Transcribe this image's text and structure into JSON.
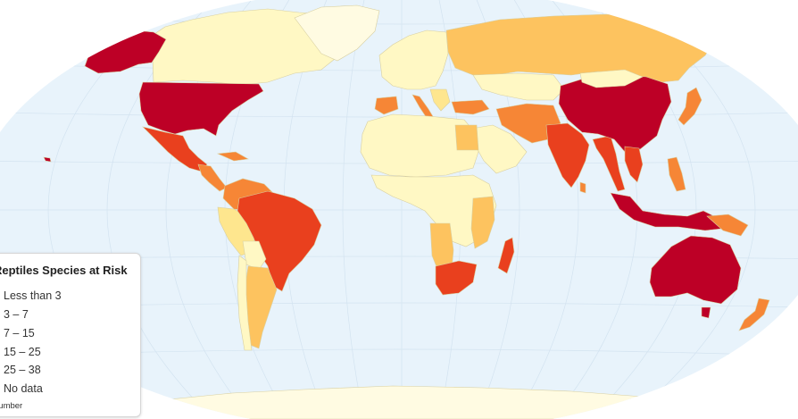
{
  "map": {
    "ocean_color": "#e8f3fb",
    "graticule_color": "#d3e3f0",
    "colors": {
      "lt3": "#fff8c4",
      "3to7": "#fee68e",
      "7to15": "#fdc35f",
      "15to25": "#f68636",
      "25to38": "#e9401e",
      "top": "#bd0026",
      "nodata": "#fffbe2"
    }
  },
  "legend": {
    "title": "Reptiles Species at Risk",
    "items": [
      {
        "label": "Less than 3"
      },
      {
        "label": "3 – 7"
      },
      {
        "label": "7 – 15"
      },
      {
        "label": "15 – 25"
      },
      {
        "label": "25 – 38"
      },
      {
        "label": "No data"
      }
    ],
    "footnote": "number"
  }
}
